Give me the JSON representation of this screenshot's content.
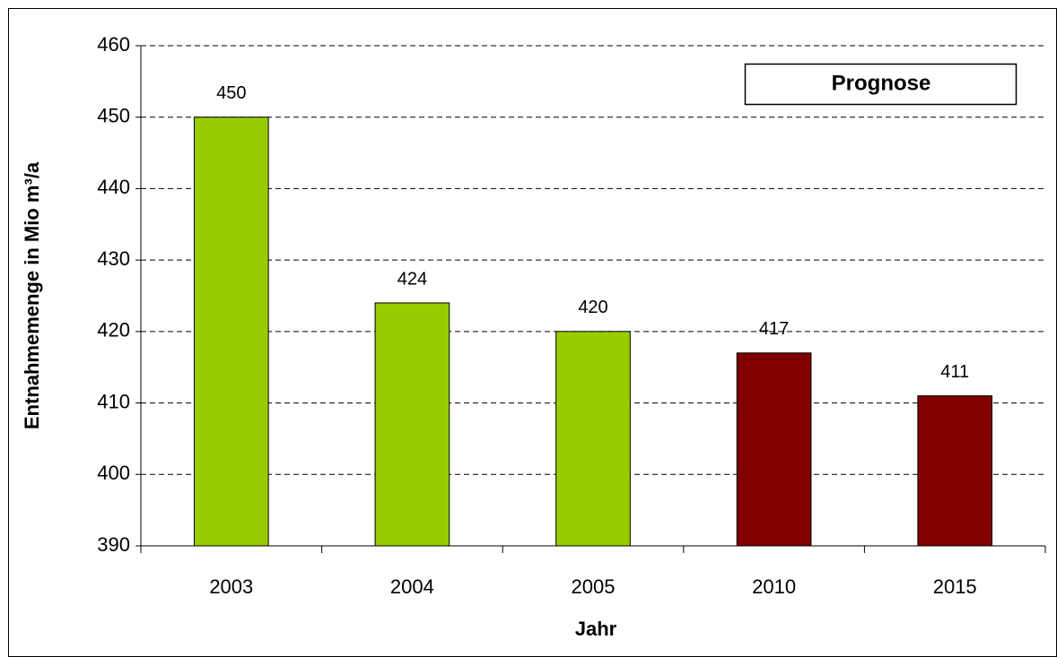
{
  "chart_data": {
    "type": "bar",
    "y_label": "Entnahmemenge in Mio m³/a",
    "x_label": "Jahr",
    "annotation": "Prognose",
    "categories": [
      "2003",
      "2004",
      "2005",
      "2010",
      "2015"
    ],
    "values": [
      450,
      424,
      420,
      417,
      411
    ],
    "colors": [
      "#99cc00",
      "#99cc00",
      "#99cc00",
      "#800000",
      "#800000"
    ],
    "ylim": [
      390,
      460
    ],
    "yticks": [
      390,
      400,
      410,
      420,
      430,
      440,
      450,
      460
    ],
    "grid": true
  }
}
